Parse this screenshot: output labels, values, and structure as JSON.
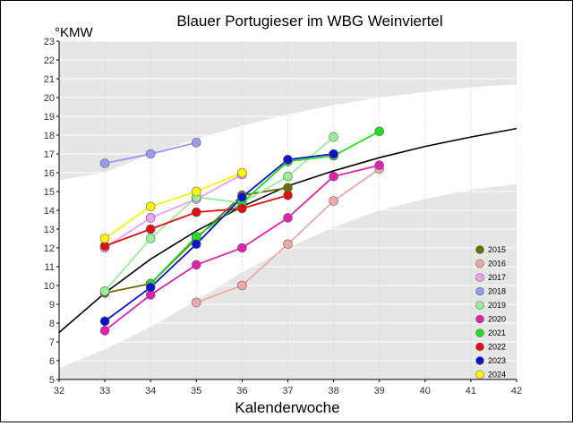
{
  "chart_data": {
    "type": "line",
    "title": "Blauer Portugieser im WBG Weinviertel",
    "xlabel": "Kalenderwoche",
    "ylabel": "°KMW",
    "xlim": [
      32,
      42
    ],
    "ylim": [
      5,
      23
    ],
    "x_ticks": [
      32,
      33,
      34,
      35,
      36,
      37,
      38,
      39,
      40,
      41,
      42
    ],
    "y_ticks": [
      5,
      6,
      7,
      8,
      9,
      10,
      11,
      12,
      13,
      14,
      15,
      16,
      17,
      18,
      19,
      20,
      21,
      22,
      23
    ],
    "legend_position": "bottom-right",
    "band_colors": {
      "outer": "#e6e6e6",
      "inner": "#ffffff"
    },
    "trend": {
      "color": "#000000",
      "x": [
        32,
        33,
        34,
        35,
        36,
        37,
        38,
        39,
        40,
        41,
        42
      ],
      "y": [
        7.5,
        9.6,
        11.4,
        12.9,
        14.2,
        15.3,
        16.1,
        16.8,
        17.4,
        17.9,
        18.35
      ]
    },
    "series": [
      {
        "name": "2015",
        "color": "#6b6b00",
        "x": [
          33,
          34,
          35,
          36,
          37
        ],
        "y": [
          9.6,
          10.1,
          12.5,
          14.8,
          15.2
        ]
      },
      {
        "name": "2016",
        "color": "#f0a7a7",
        "x": [
          35,
          36,
          37,
          38,
          39
        ],
        "y": [
          9.1,
          10.0,
          12.2,
          14.5,
          16.2
        ]
      },
      {
        "name": "2017",
        "color": "#f0a0f0",
        "x": [
          33,
          34,
          35,
          36
        ],
        "y": [
          12.0,
          13.6,
          14.6,
          15.9
        ]
      },
      {
        "name": "2018",
        "color": "#9999ee",
        "x": [
          33,
          34,
          35
        ],
        "y": [
          16.5,
          17.0,
          17.6
        ]
      },
      {
        "name": "2019",
        "color": "#99ee99",
        "x": [
          33,
          34,
          35,
          36,
          37,
          38
        ],
        "y": [
          9.7,
          12.5,
          14.7,
          14.4,
          15.8,
          17.9
        ]
      },
      {
        "name": "2020",
        "color": "#e020b0",
        "x": [
          33,
          34,
          35,
          36,
          37,
          38,
          39
        ],
        "y": [
          7.6,
          9.5,
          11.1,
          12.0,
          13.6,
          15.8,
          16.4
        ]
      },
      {
        "name": "2021",
        "color": "#22dd22",
        "x": [
          34,
          35,
          36,
          37,
          38,
          39
        ],
        "y": [
          10.1,
          12.6,
          14.4,
          16.6,
          16.9,
          18.2
        ]
      },
      {
        "name": "2022",
        "color": "#dd1111",
        "x": [
          33,
          34,
          35,
          36,
          37
        ],
        "y": [
          12.1,
          13.0,
          13.9,
          14.1,
          14.8
        ]
      },
      {
        "name": "2023",
        "color": "#0b12cc",
        "x": [
          33,
          34,
          35,
          36,
          37,
          38
        ],
        "y": [
          8.1,
          9.9,
          12.2,
          14.7,
          16.7,
          17.0
        ]
      },
      {
        "name": "2024",
        "color": "#f8f800",
        "x": [
          33,
          34,
          35,
          36
        ],
        "y": [
          12.5,
          14.2,
          15.0,
          16.0
        ]
      }
    ]
  }
}
